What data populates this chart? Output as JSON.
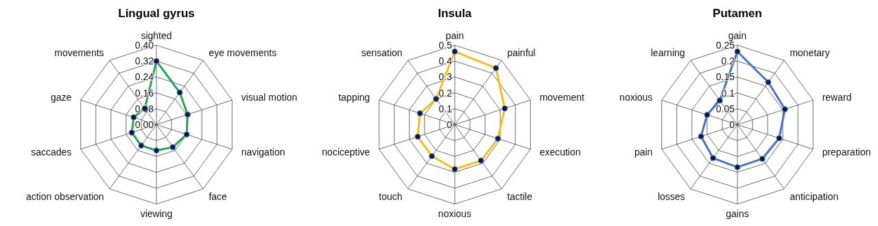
{
  "chart_data": [
    {
      "type": "radar",
      "title": "Lingual gyrus",
      "categories": [
        "sighted",
        "eye movements",
        "visual motion",
        "navigation",
        "face",
        "viewing",
        "action observation",
        "saccades",
        "gaze",
        "movements"
      ],
      "series": [
        {
          "color": "#1faa4b",
          "values": [
            0.32,
            0.2,
            0.165,
            0.16,
            0.14,
            0.13,
            0.13,
            0.13,
            0.12,
            0.1
          ]
        }
      ],
      "ylim": [
        0,
        0.4
      ],
      "yticks": [
        {
          "value": 0,
          "label": "0.00"
        },
        0.08,
        0.16,
        0.24,
        0.32,
        {
          "value": 0.4,
          "label": "0.40"
        }
      ],
      "grid": true,
      "marker": "circle"
    },
    {
      "type": "radar",
      "title": "Insula",
      "categories": [
        "pain",
        "painful",
        "movement",
        "execution",
        "tactile",
        "noxious",
        "touch",
        "nociceptive",
        "tapping",
        "sensation"
      ],
      "series": [
        {
          "color": "#fbbc16",
          "values": [
            0.46,
            0.44,
            0.33,
            0.285,
            0.28,
            0.28,
            0.245,
            0.245,
            0.23,
            0.2
          ]
        }
      ],
      "ylim": [
        0,
        0.5
      ],
      "yticks": [
        0,
        0.1,
        0.2,
        0.3,
        0.4,
        0.5
      ],
      "grid": true,
      "marker": "circle"
    },
    {
      "type": "radar",
      "title": "Putamen",
      "categories": [
        "gain",
        "monetary",
        "reward",
        "preparation",
        "anticipation",
        "gains",
        "losses",
        "pain",
        "noxious",
        "learning"
      ],
      "series": [
        {
          "color": "#4472c4",
          "values": [
            0.23,
            0.165,
            0.157,
            0.138,
            0.133,
            0.134,
            0.13,
            0.12,
            0.1,
            0.094
          ]
        }
      ],
      "ylim": [
        0,
        0.25
      ],
      "yticks": [
        0,
        0.05,
        0.1,
        0.15,
        0.2,
        0.25
      ],
      "grid": true,
      "marker": "circle"
    }
  ]
}
